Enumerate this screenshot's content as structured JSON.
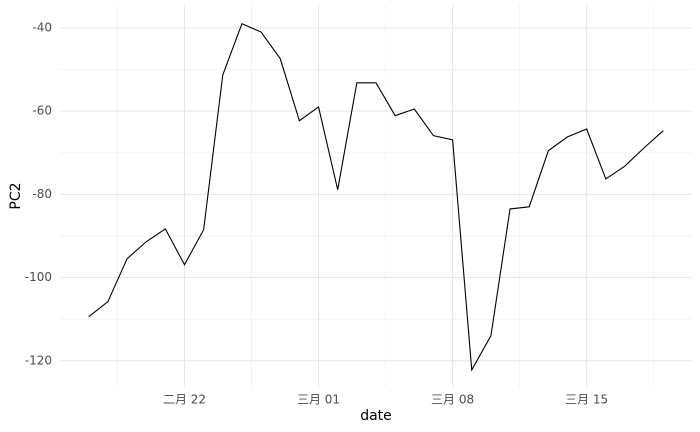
{
  "chart_data": {
    "type": "line",
    "x": [
      "02-17",
      "02-18",
      "02-19",
      "02-20",
      "02-21",
      "02-22",
      "02-23",
      "02-24",
      "02-25",
      "02-26",
      "02-27",
      "02-28",
      "03-01",
      "03-02",
      "03-03",
      "03-04",
      "03-05",
      "03-06",
      "03-07",
      "03-08",
      "03-09",
      "03-10",
      "03-11",
      "03-12",
      "03-13",
      "03-14",
      "03-15",
      "03-16",
      "03-17",
      "03-18",
      "03-19"
    ],
    "series": [
      {
        "name": "PC2",
        "color": "#000000",
        "values": [
          -109.4,
          -105.8,
          -95.5,
          -91.4,
          -88.3,
          -96.9,
          -88.5,
          -51.3,
          -39.0,
          -41.0,
          -47.4,
          -62.3,
          -59.0,
          -78.9,
          -53.2,
          -53.2,
          -61.1,
          -59.5,
          -65.9,
          -66.9,
          -122.2,
          -114.0,
          -83.5,
          -83.0,
          -69.5,
          -66.2,
          -64.3,
          -76.3,
          -73.2,
          -68.8,
          -64.7
        ]
      }
    ],
    "xlabel": "date",
    "ylabel": "PC2",
    "ylim": [
      -126.3,
      -34.5
    ],
    "yticks": [
      -120,
      -100,
      -80,
      -60,
      -40
    ],
    "xticks": [
      {
        "value": "02-22",
        "label": "二月 22"
      },
      {
        "value": "03-01",
        "label": "三月 01"
      },
      {
        "value": "03-08",
        "label": "三月 08"
      },
      {
        "value": "03-15",
        "label": "三月 15"
      }
    ],
    "grid": true
  }
}
